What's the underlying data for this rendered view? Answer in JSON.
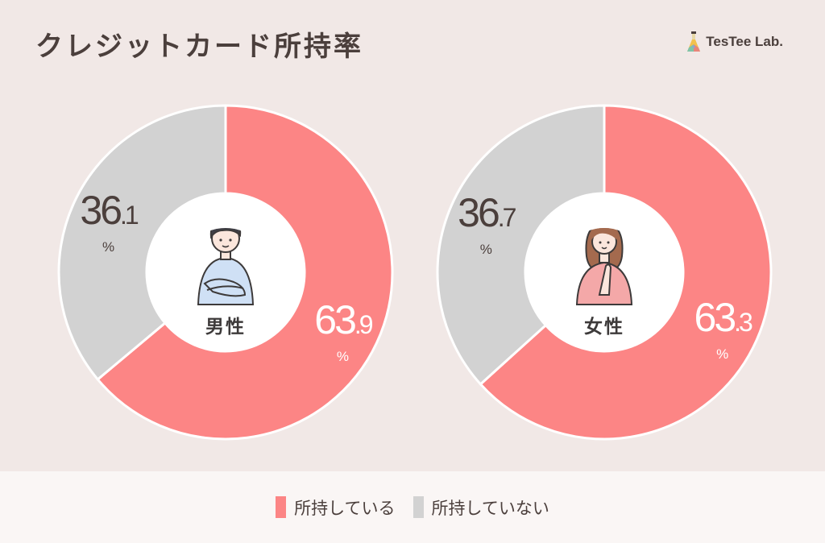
{
  "title": "クレジットカード所持率",
  "brand": "TesTee Lab.",
  "chart_data": [
    {
      "type": "pie",
      "center_label": "男性",
      "slices": [
        {
          "label": "所持している",
          "value": 63.9,
          "int": "63",
          "dec": ".9",
          "unit": "%",
          "color": "#fc8585"
        },
        {
          "label": "所持していない",
          "value": 36.1,
          "int": "36",
          "dec": ".1",
          "unit": "%",
          "color": "#d2d2d2"
        }
      ]
    },
    {
      "type": "pie",
      "center_label": "女性",
      "slices": [
        {
          "label": "所持している",
          "value": 63.3,
          "int": "63",
          "dec": ".3",
          "unit": "%",
          "color": "#fc8585"
        },
        {
          "label": "所持していない",
          "value": 36.7,
          "int": "36",
          "dec": ".7",
          "unit": "%",
          "color": "#d2d2d2"
        }
      ]
    }
  ],
  "legend": [
    {
      "label": "所持している",
      "color": "#fc8585"
    },
    {
      "label": "所持していない",
      "color": "#d2d2d2"
    }
  ]
}
